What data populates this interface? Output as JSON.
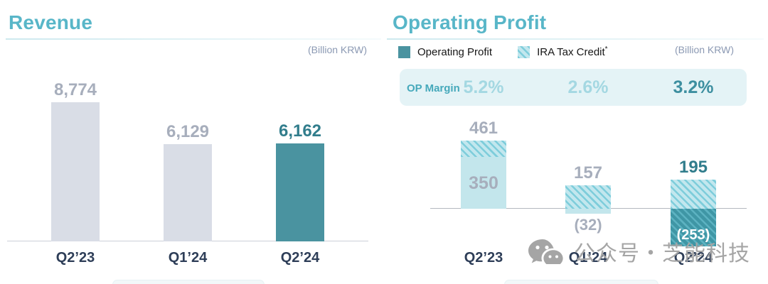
{
  "watermark": {
    "text": "公众号・芝能科技",
    "icon": "wechat-icon"
  },
  "chart_data": [
    {
      "type": "bar",
      "title": "Revenue",
      "unit_label": "(Billion KRW)",
      "categories": [
        "Q2’23",
        "Q1’24",
        "Q2’24"
      ],
      "values": [
        8774,
        6129,
        6162
      ],
      "value_labels": [
        "8,774",
        "6,129",
        "6,162"
      ],
      "highlight_index": 2,
      "ylim": [
        0,
        9000
      ],
      "grid": false,
      "legend_position": "none"
    },
    {
      "type": "bar",
      "title": "Operating Profit",
      "unit_label": "(Billion KRW)",
      "categories": [
        "Q2’23",
        "Q1’24",
        "Q2’24"
      ],
      "legend": [
        {
          "label": "Operating Profit",
          "suffix": "",
          "swatch": "operating-profit-solid"
        },
        {
          "label": "IRA Tax Credit",
          "suffix": "*",
          "swatch": "ira-tax-credit-hatch"
        }
      ],
      "op_margin": {
        "label": "OP Margin",
        "values": [
          "5.2%",
          "2.6%",
          "3.2%"
        ]
      },
      "zero_line": true,
      "bars": [
        {
          "category": "Q2’23",
          "total": 461,
          "total_label": "461",
          "label_style": "gray",
          "segments_above": [
            {
              "kind": "hatch-light",
              "value": 111
            },
            {
              "kind": "solid-light",
              "value": 350,
              "label": "350",
              "label_placement": "inside"
            }
          ],
          "segments_below": []
        },
        {
          "category": "Q1’24",
          "total": 157,
          "total_label": "157",
          "label_style": "gray",
          "segments_above": [
            {
              "kind": "hatch-light",
              "value": 157
            }
          ],
          "segments_below": [
            {
              "kind": "solid-light",
              "value": 32,
              "label": "(32)",
              "label_placement": "below"
            }
          ]
        },
        {
          "category": "Q2’24",
          "total": 195,
          "total_label": "195",
          "label_style": "teal",
          "segments_above": [
            {
              "kind": "hatch-light",
              "value": 195
            }
          ],
          "segments_below": [
            {
              "kind": "hatch-dark",
              "value": 253,
              "label": "(253)",
              "label_placement": "inside-white"
            }
          ]
        }
      ]
    }
  ],
  "colors": {
    "title_teal": "#58b6c8",
    "bar_muted": "#d9dde6",
    "bar_accent": "#4a93a0",
    "value_gray": "#a7aebc",
    "value_teal": "#317d8c",
    "axis_label": "#2e3e58",
    "unit_label": "#8b99b3",
    "band_bg": "#e4f3f6",
    "band_label": "#46a9bb",
    "margin_light": "#a4d8e2",
    "margin_dark": "#3d8fa0",
    "hatch_light_bg": "#c2e7ee",
    "hatch_light_stripe": "#7ecddb",
    "hatch_dark_bg": "#3f96a5",
    "hatch_dark_stripe": "#5cb2c1",
    "solid_light": "#c3e6ec",
    "watermark": "#a5a5a5"
  }
}
